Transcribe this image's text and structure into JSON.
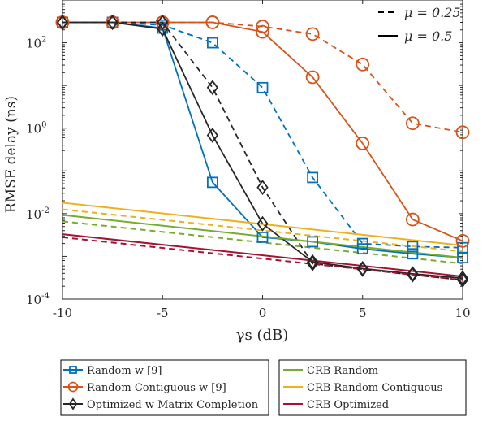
{
  "chart_data": {
    "type": "line",
    "xlabel": "γs (dB)",
    "ylabel": "RMSE delay (ns)",
    "xlim": [
      -10,
      10
    ],
    "ylim": [
      0.0001,
      1000
    ],
    "yscale": "log",
    "xticks": [
      -10,
      -5,
      0,
      5,
      10
    ],
    "xtick_labels": [
      "-10",
      "-5",
      "0",
      "5",
      "10"
    ],
    "yticks": [
      0.0001,
      0.01,
      1,
      100
    ],
    "ytick_labels": [
      {
        "base": "10",
        "exp": "-4"
      },
      {
        "base": "10",
        "exp": "-2"
      },
      {
        "base": "10",
        "exp": "0"
      },
      {
        "base": "10",
        "exp": "2"
      }
    ],
    "x": [
      -10,
      -7.5,
      -5,
      -2.5,
      0,
      2.5,
      5,
      7.5,
      10
    ],
    "linestyle_legend": [
      {
        "label": "μ = 0.25",
        "style": "dashed"
      },
      {
        "label": "μ = 0.5",
        "style": "solid"
      }
    ],
    "legend": [
      {
        "label": "Random w [9]",
        "color": "#0072BD",
        "marker": "square"
      },
      {
        "label": "Random Contiguous w [9]",
        "color": "#D95319",
        "marker": "circle"
      },
      {
        "label": "Optimized w Matrix Completion",
        "color": "#262626",
        "marker": "diamond"
      },
      {
        "label": "CRB Random",
        "color": "#77AC30",
        "marker": "none"
      },
      {
        "label": "CRB Random Contiguous",
        "color": "#EDB120",
        "marker": "none"
      },
      {
        "label": "CRB Optimized",
        "color": "#A2142F",
        "marker": "none"
      }
    ],
    "series": [
      {
        "name": "Random w [9], μ=0.5",
        "color": "#0072BD",
        "marker": "square",
        "dash": false,
        "values": [
          300,
          300,
          220,
          0.054,
          0.0028,
          0.0022,
          0.0015,
          0.00115,
          0.00093
        ]
      },
      {
        "name": "Random w [9], μ=0.25",
        "color": "#0072BD",
        "marker": "square",
        "dash": true,
        "values": [
          300,
          300,
          260,
          100,
          8.9,
          0.07,
          0.002,
          0.0017,
          0.0016
        ]
      },
      {
        "name": "Random Contiguous w [9], μ=0.5",
        "color": "#D95319",
        "marker": "circle",
        "dash": false,
        "values": [
          300,
          300,
          300,
          300,
          180,
          15.6,
          0.44,
          0.0073,
          0.0023
        ]
      },
      {
        "name": "Random Contiguous w [9], μ=0.25",
        "color": "#D95319",
        "marker": "circle",
        "dash": true,
        "values": [
          300,
          300,
          300,
          300,
          240,
          160,
          31,
          1.3,
          0.8
        ]
      },
      {
        "name": "Optimized w Matrix Completion, μ=0.5",
        "color": "#262626",
        "marker": "diamond",
        "dash": false,
        "values": [
          300,
          300,
          210,
          0.68,
          0.0058,
          0.00074,
          0.00052,
          0.00039,
          0.00031
        ]
      },
      {
        "name": "Optimized w Matrix Completion, μ=0.25",
        "color": "#262626",
        "marker": "diamond",
        "dash": true,
        "values": [
          300,
          300,
          300,
          8.9,
          0.041,
          0.00068,
          0.0005,
          0.00037,
          0.00028
        ]
      },
      {
        "name": "CRB Random Contiguous, μ=0.5",
        "color": "#EDB120",
        "marker": "none",
        "dash": false,
        "ends": [
          0.018,
          0.0018
        ]
      },
      {
        "name": "CRB Random Contiguous, μ=0.25",
        "color": "#EDB120",
        "marker": "none",
        "dash": true,
        "ends": [
          0.0126,
          0.0013
        ]
      },
      {
        "name": "CRB Random, μ=0.5",
        "color": "#77AC30",
        "marker": "none",
        "dash": false,
        "ends": [
          0.0093,
          0.00093
        ]
      },
      {
        "name": "CRB Random, μ=0.25",
        "color": "#77AC30",
        "marker": "none",
        "dash": true,
        "ends": [
          0.0066,
          0.00068
        ]
      },
      {
        "name": "CRB Optimized, μ=0.5",
        "color": "#A2142F",
        "marker": "none",
        "dash": false,
        "ends": [
          0.0033,
          0.00034
        ]
      },
      {
        "name": "CRB Optimized, μ=0.25",
        "color": "#A2142F",
        "marker": "none",
        "dash": true,
        "ends": [
          0.0028,
          0.00028
        ]
      }
    ]
  }
}
